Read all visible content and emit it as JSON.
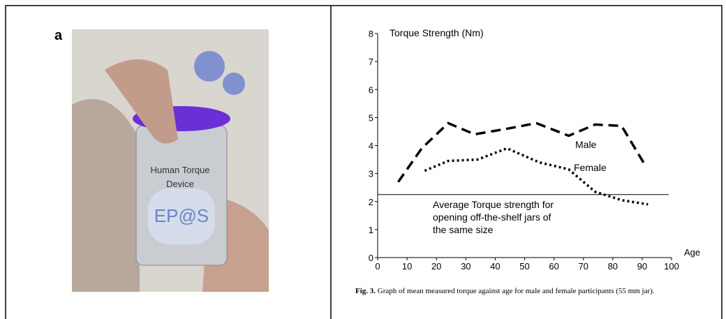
{
  "figure_a": {
    "label": "a",
    "jar_text": [
      "Human Torque",
      "Device"
    ],
    "logo": "EP@S"
  },
  "chart_data": {
    "type": "line",
    "ylabel": "Torque Strength (Nm)",
    "xlabel": "Age",
    "xlim": [
      0,
      100
    ],
    "ylim": [
      0,
      8
    ],
    "xticks": [
      0,
      10,
      20,
      30,
      40,
      50,
      60,
      70,
      80,
      90,
      100
    ],
    "yticks": [
      0,
      1,
      2,
      3,
      4,
      5,
      6,
      7,
      8
    ],
    "series": [
      {
        "name": "Male",
        "color": "#000000",
        "dash": "dashed",
        "x": [
          7,
          15,
          24,
          33,
          44,
          54,
          65,
          74,
          83,
          91
        ],
        "values": [
          2.7,
          3.9,
          4.8,
          4.4,
          4.6,
          4.8,
          4.35,
          4.75,
          4.7,
          3.3
        ]
      },
      {
        "name": "Female",
        "color": "#000000",
        "dash": "dotted",
        "x": [
          16,
          24,
          34,
          44,
          55,
          65,
          74,
          83,
          92
        ],
        "values": [
          3.1,
          3.45,
          3.5,
          3.9,
          3.4,
          3.15,
          2.35,
          2.05,
          1.9
        ]
      }
    ],
    "reference": {
      "value": 2.25,
      "label": [
        "Average Torque strength for",
        "opening off-the-shelf jars of",
        "the same size"
      ]
    },
    "caption": {
      "label": "Fig. 3.",
      "text": "Graph of mean measured torque against age for male and female participants (55 mm jar)."
    }
  }
}
